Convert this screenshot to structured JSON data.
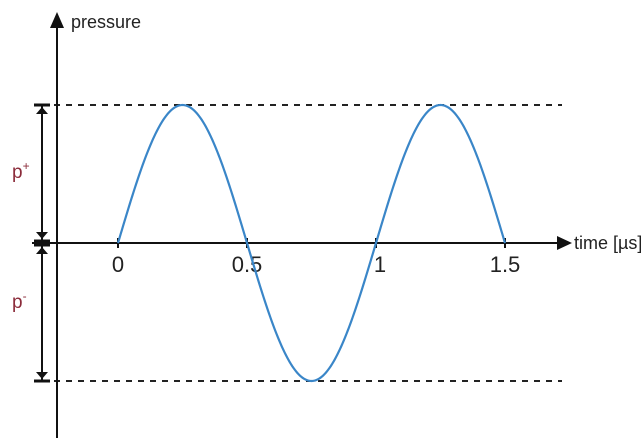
{
  "chart_data": {
    "type": "line",
    "title": "",
    "xlabel": "time [µs]",
    "ylabel": "pressure",
    "xlim": [
      0,
      1.5
    ],
    "ylim": [
      -1,
      1
    ],
    "x_ticks": [
      {
        "value": 0,
        "label": "0"
      },
      {
        "value": 0.5,
        "label": "0.5"
      },
      {
        "value": 1,
        "label": "1"
      },
      {
        "value": 1.5,
        "label": "1.5"
      }
    ],
    "series": [
      {
        "color": "#3a86c8",
        "function": "sin(2*pi*t/period)",
        "period": 1.0,
        "amplitude": 1.0,
        "x_start": 0,
        "x_end": 1.5
      }
    ],
    "reference_lines": [
      {
        "y": 1,
        "style": "dashed",
        "color": "#222222"
      },
      {
        "y": -1,
        "style": "dashed",
        "color": "#222222"
      }
    ],
    "annotations": {
      "positive": {
        "base": "p",
        "sup": "+"
      },
      "negative": {
        "base": "p",
        "sup": "-"
      }
    },
    "grid": false,
    "legend": "none",
    "colors": {
      "curve": "#3a86c8",
      "axes": "#111111",
      "amplitude_label": "#8b2b3a"
    }
  }
}
